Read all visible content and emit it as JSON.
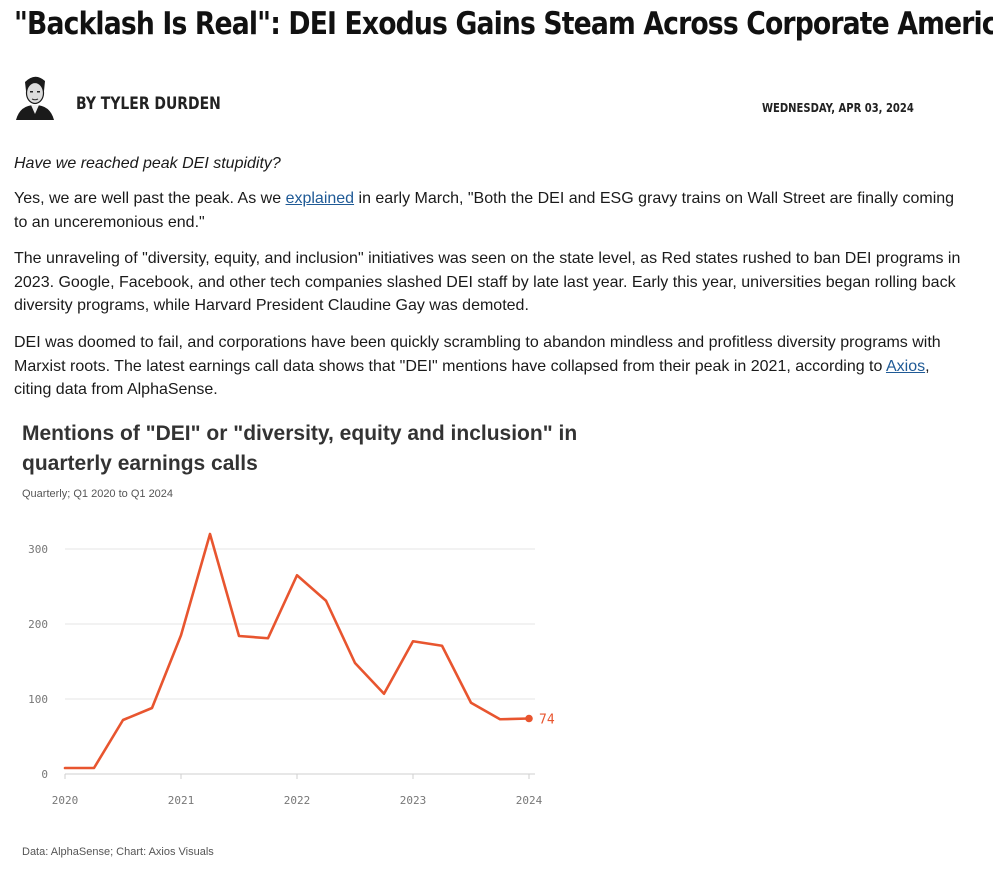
{
  "article": {
    "headline": "\"Backlash Is Real\": DEI Exodus Gains Steam Across Corporate America",
    "author": "BY TYLER DURDEN",
    "date": "WEDNESDAY, APR 03, 2024",
    "lede": "Have we reached peak DEI stupidity?",
    "p1_before": "Yes, we are well past the peak. As we ",
    "p1_link": "explained",
    "p1_after": " in early March, \"Both the DEI and ESG gravy trains on Wall Street are finally coming to an unceremonious end.\"",
    "p2": "The unraveling of \"diversity, equity, and inclusion\" initiatives was seen on the state level, as Red states rushed to ban DEI programs in 2023. Google, Facebook, and other tech companies slashed DEI staff by late last year. Early this year, universities began rolling back diversity programs, while Harvard President Claudine Gay was demoted.",
    "p3_before": "DEI was doomed to fail, and corporations have been quickly scrambling to abandon mindless and profitless diversity programs with Marxist roots. The latest earnings call data shows that \"DEI\" mentions have collapsed from their peak in 2021, according to ",
    "p3_link": "Axios",
    "p3_after": ", citing data from AlphaSense."
  },
  "chart_data": {
    "type": "line",
    "title": "Mentions of \"DEI\" or \"diversity, equity and inclusion\" in quarterly earnings calls",
    "subtitle": "Quarterly; Q1 2020 to Q1 2024",
    "source": "Data: AlphaSense; Chart: Axios Visuals",
    "xlabel": "",
    "ylabel": "",
    "x": [
      "Q1 2020",
      "Q2 2020",
      "Q3 2020",
      "Q4 2020",
      "Q1 2021",
      "Q2 2021",
      "Q3 2021",
      "Q4 2021",
      "Q1 2022",
      "Q2 2022",
      "Q3 2022",
      "Q4 2022",
      "Q1 2023",
      "Q2 2023",
      "Q3 2023",
      "Q4 2023",
      "Q1 2024"
    ],
    "values": [
      8,
      8,
      72,
      88,
      185,
      320,
      184,
      181,
      265,
      231,
      148,
      107,
      177,
      171,
      95,
      73,
      74
    ],
    "end_label": "74",
    "x_ticks": [
      "2020",
      "2021",
      "2022",
      "2023",
      "2024"
    ],
    "y_ticks": [
      0,
      100,
      200,
      300
    ],
    "ylim": [
      0,
      300
    ],
    "grid": true,
    "line_color": "#e8552f",
    "grid_color": "#e6e6e6"
  }
}
